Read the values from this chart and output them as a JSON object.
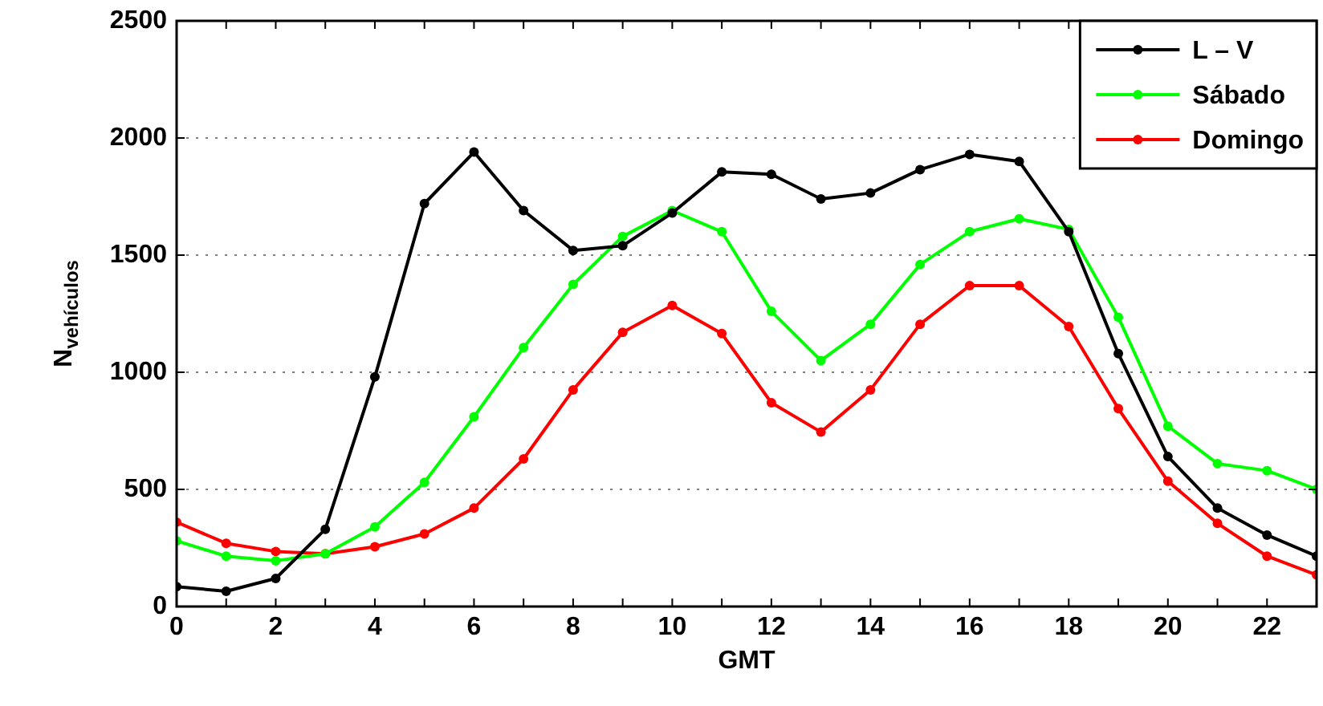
{
  "chart_data": {
    "type": "line",
    "xlabel": "GMT",
    "ylabel": "N$_{vehículos}$",
    "x": [
      0,
      1,
      2,
      3,
      4,
      5,
      6,
      7,
      8,
      9,
      10,
      11,
      12,
      13,
      14,
      15,
      16,
      17,
      18,
      19,
      20,
      21,
      22,
      23
    ],
    "series": [
      {
        "name": "L – V",
        "color": "#000000",
        "values": [
          85,
          65,
          120,
          330,
          980,
          1720,
          1940,
          1690,
          1520,
          1540,
          1680,
          1855,
          1845,
          1740,
          1765,
          1865,
          1930,
          1900,
          1600,
          1080,
          640,
          420,
          305,
          215
        ]
      },
      {
        "name": "Sábado",
        "color": "#00ff00",
        "values": [
          280,
          215,
          195,
          225,
          340,
          530,
          810,
          1105,
          1375,
          1580,
          1690,
          1600,
          1260,
          1050,
          1205,
          1460,
          1600,
          1655,
          1610,
          1235,
          770,
          610,
          580,
          500
        ]
      },
      {
        "name": "Domingo",
        "color": "#ff0000",
        "values": [
          360,
          270,
          235,
          225,
          255,
          310,
          420,
          630,
          925,
          1170,
          1285,
          1165,
          870,
          745,
          925,
          1205,
          1370,
          1370,
          1195,
          845,
          535,
          355,
          215,
          135
        ]
      }
    ],
    "xlim": [
      0,
      23
    ],
    "xticks": [
      0,
      {
        "value": 1,
        "label": null
      },
      2,
      {
        "value": 3,
        "label": null
      },
      4,
      {
        "value": 5,
        "label": null
      },
      6,
      {
        "value": 7,
        "label": null
      },
      8,
      {
        "value": 9,
        "label": null
      },
      10,
      {
        "value": 11,
        "label": null
      },
      12,
      {
        "value": 13,
        "label": null
      },
      14,
      {
        "value": 15,
        "label": null
      },
      16,
      {
        "value": 17,
        "label": null
      },
      18,
      {
        "value": 19,
        "label": null
      },
      20,
      {
        "value": 21,
        "label": null
      },
      22,
      {
        "value": 23,
        "label": null
      }
    ],
    "ylim": [
      0,
      2500
    ],
    "yticks": [
      0,
      500,
      1000,
      1500,
      2000,
      2500
    ],
    "grid": "y",
    "legend": "top right",
    "marker": "circle",
    "line_style": "solid"
  }
}
